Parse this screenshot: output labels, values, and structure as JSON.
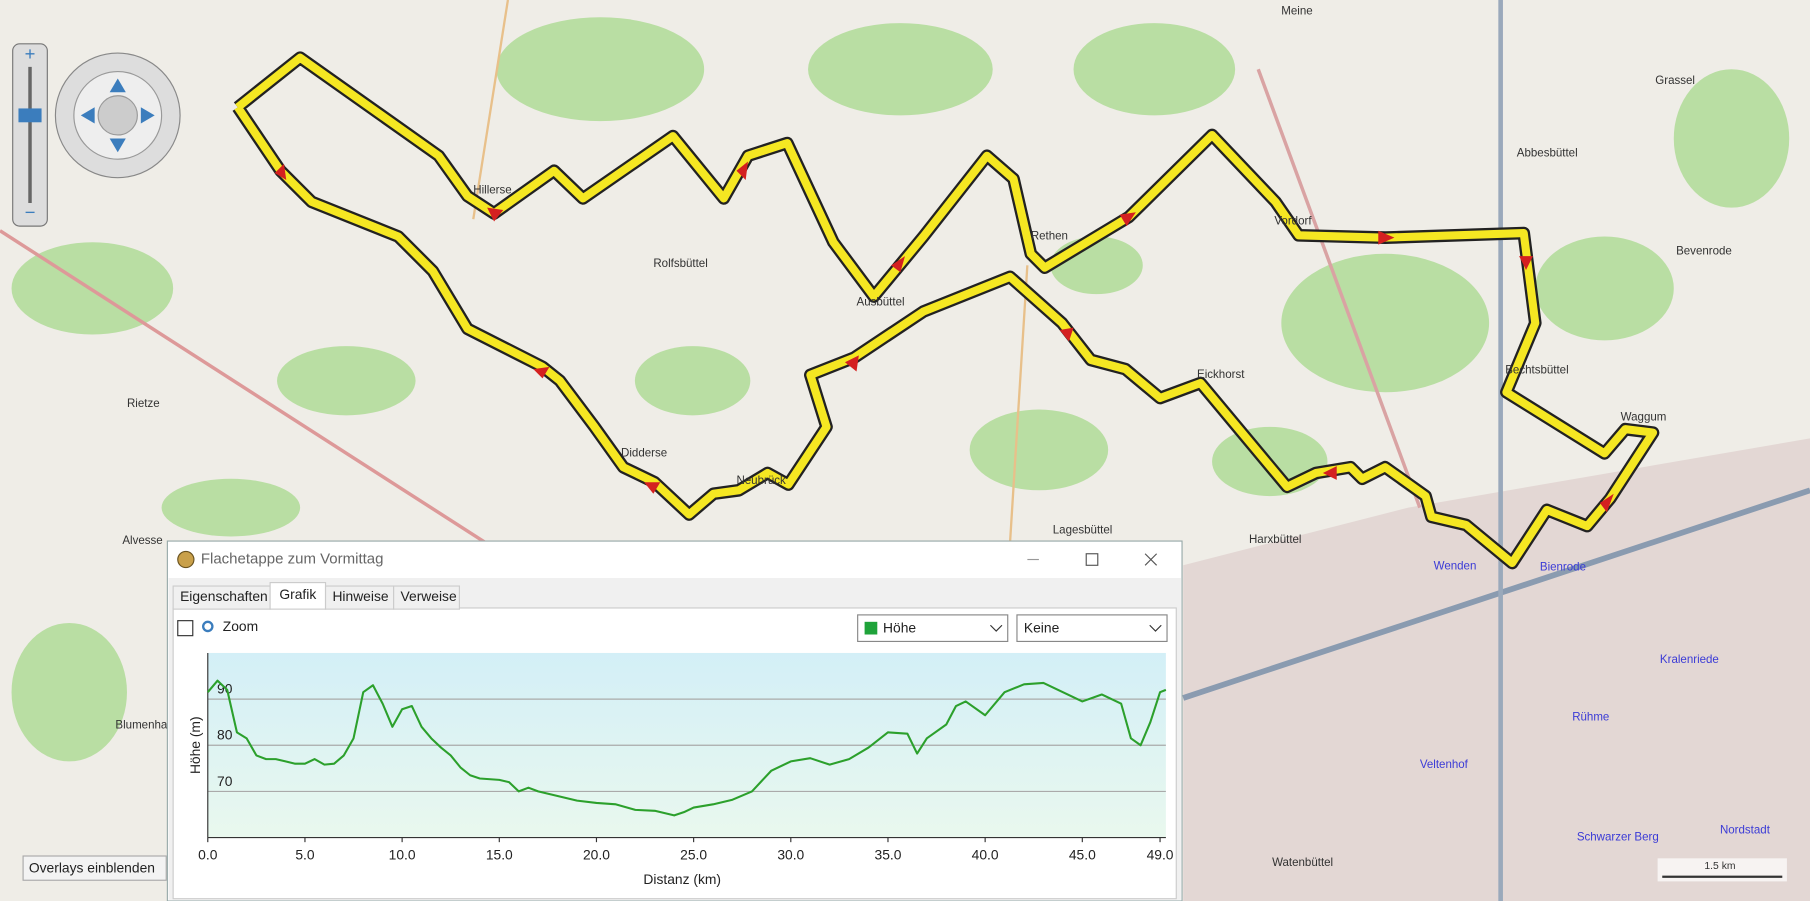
{
  "map": {
    "places": [
      "Meine",
      "Grassel",
      "Abbesbüttel",
      "Bevenrode",
      "Hillerse",
      "Rolfsbüttel",
      "Rethen",
      "Vordorf",
      "Ausbüttel",
      "Rietze",
      "Eickhorst",
      "Bechtsbüttel",
      "Waggum",
      "Didderse",
      "Neubrück",
      "Lagesbüttel",
      "Harxbüttel",
      "Alvesse",
      "Watenbüttel",
      "Blumenhagen"
    ],
    "districts": [
      "Wenden",
      "Bienrode",
      "Kralenriede",
      "Rühme",
      "Veltenhof",
      "Schwarzer Berg",
      "Nordstadt"
    ],
    "overlay_button": "Overlays einblenden",
    "scale": "1.5 km"
  },
  "dialog": {
    "title": "Flachetappe zum Vormittag",
    "tabs": [
      "Eigenschaften",
      "Grafik",
      "Hinweise",
      "Verweise"
    ],
    "zoom_label": "Zoom",
    "measure": "Höhe",
    "second_measure": "Keine"
  },
  "chart_data": {
    "type": "line",
    "xlabel": "Distanz  (km)",
    "ylabel": "Höhe (m)",
    "color": "#2ca02c",
    "x": [
      0,
      0.5,
      1,
      1.5,
      2,
      2.5,
      3,
      3.5,
      4,
      4.5,
      5,
      5.5,
      6,
      6.5,
      7,
      7.5,
      8,
      8.5,
      9,
      9.5,
      10,
      10.5,
      11,
      11.5,
      12,
      12.5,
      13,
      13.5,
      14,
      15,
      15.5,
      16,
      16.5,
      17,
      18,
      19,
      20,
      21,
      22,
      23,
      24,
      24.5,
      25,
      26,
      27,
      28,
      29,
      30,
      31,
      32,
      33,
      34,
      35,
      36,
      36.5,
      37,
      38,
      38.5,
      39,
      40,
      41,
      42,
      43,
      44,
      45,
      46,
      47,
      47.5,
      48,
      48.5,
      49,
      49.3
    ],
    "values": [
      91.5,
      94,
      92,
      82.8,
      81.5,
      77.8,
      77,
      77,
      76.5,
      76,
      76,
      77,
      75.8,
      76,
      77.8,
      81.5,
      91.5,
      93,
      89,
      84,
      87.8,
      88.5,
      84,
      81.5,
      79.5,
      77.8,
      75.2,
      73.5,
      72.8,
      72.5,
      72,
      70,
      70.8,
      70,
      69,
      68,
      67.5,
      67.2,
      66,
      65.8,
      64.8,
      65.5,
      66.5,
      67.2,
      68.2,
      70,
      74.5,
      76.5,
      77.2,
      75.8,
      77,
      79.5,
      82.8,
      82.5,
      78.2,
      81.5,
      84.5,
      88.5,
      89.5,
      86.5,
      91.5,
      93.2,
      93.5,
      91.5,
      89.5,
      91,
      89,
      81.5,
      80,
      85,
      91.5,
      92
    ],
    "xlim": [
      0,
      49.3
    ],
    "xticks": [
      {
        "value": 0,
        "label": "0.0"
      },
      {
        "value": 5,
        "label": "5.0"
      },
      {
        "value": 10,
        "label": "10.0"
      },
      {
        "value": 15,
        "label": "15.0"
      },
      {
        "value": 20,
        "label": "20.0"
      },
      {
        "value": 25,
        "label": "25.0"
      },
      {
        "value": 30,
        "label": "30.0"
      },
      {
        "value": 35,
        "label": "35.0"
      },
      {
        "value": 40,
        "label": "40.0"
      },
      {
        "value": 45,
        "label": "45.0"
      },
      {
        "value": 49,
        "label": "49.0"
      }
    ],
    "ylim": [
      60,
      100
    ],
    "yticks": [
      70,
      80,
      90
    ],
    "grid": true
  }
}
